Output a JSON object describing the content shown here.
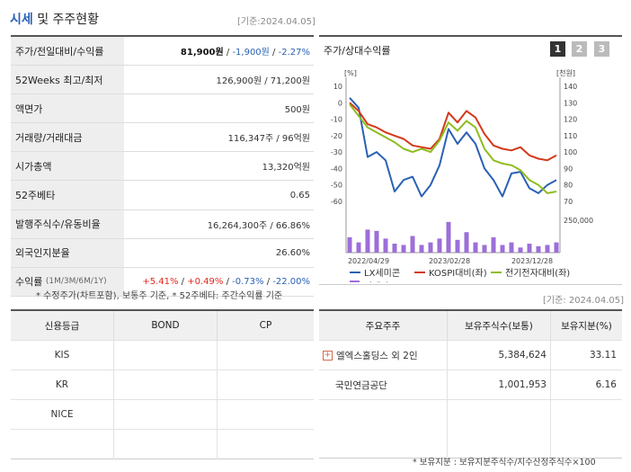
{
  "header": {
    "title_main": "시세",
    "title_sub": " 및 주주현황",
    "date": "[기준:2024.04.05]"
  },
  "info": [
    {
      "label": "주가/전일대비/수익률",
      "v1": "81,900원",
      "sep1": " / ",
      "v2": "-1,900원",
      "sep2": " / ",
      "v3": "-2.27%"
    },
    {
      "label": "52Weeks 최고/최저",
      "value": "126,900원 / 71,200원"
    },
    {
      "label": "액면가",
      "value": "500원"
    },
    {
      "label": "거래량/거래대금",
      "value": "116,347주 / 96억원"
    },
    {
      "label": "시가총액",
      "value": "13,320억원"
    },
    {
      "label": "52주베타",
      "value": "0.65"
    },
    {
      "label": "발행주식수/유동비율",
      "value": "16,264,300주 / 66.86%"
    },
    {
      "label": "외국인지분율",
      "value": "26.60%"
    },
    {
      "label": "수익률",
      "label_small": "(1M/3M/6M/1Y)",
      "r1": "+5.41%",
      "r2": "+0.49%",
      "r3": "-0.73%",
      "r4": "-22.00%",
      "sep": " / "
    }
  ],
  "note": "* 수정주가(차트포함), 보통주 기준, * 52주베타: 주간수익률 기준",
  "chart_panel": {
    "title": "주가/상대수익률",
    "tabs": [
      "1",
      "2",
      "3"
    ],
    "active_tab": "1"
  },
  "chart_data": {
    "type": "line",
    "y_left_unit": "[%]",
    "y_right_unit": "[천원]",
    "y_left_ticks": [
      "10",
      "0",
      "-10",
      "-20",
      "-30",
      "-40",
      "-50",
      "-60"
    ],
    "y_right_ticks": [
      "140",
      "130",
      "120",
      "110",
      "100",
      "90",
      "80",
      "70"
    ],
    "ylim_left": [
      -60,
      10
    ],
    "ylim_right": [
      70,
      140
    ],
    "x_tick_labels": [
      "2022/04/29",
      "2023/02/28",
      "2023/12/28"
    ],
    "volume_tick": "250,000",
    "series": [
      {
        "name": "LX세미콘",
        "color": "#2a61b4",
        "values": [
          3,
          -3,
          -33,
          -30,
          -35,
          -54,
          -47,
          -45,
          -57,
          -50,
          -38,
          -16,
          -25,
          -18,
          -25,
          -40,
          -47,
          -57,
          -43,
          -42,
          -52,
          -55,
          -50,
          -47
        ]
      },
      {
        "name": "KOSPI대비(좌)",
        "color": "#d2391b",
        "values": [
          0,
          -5,
          -13,
          -15,
          -18,
          -20,
          -22,
          -26,
          -27,
          -28,
          -22,
          -6,
          -12,
          -5,
          -9,
          -19,
          -26,
          -28,
          -29,
          -27,
          -32,
          -34,
          -35,
          -32
        ]
      },
      {
        "name": "전기전자대비(좌)",
        "color": "#8fbc1f",
        "values": [
          -1,
          -8,
          -15,
          -18,
          -21,
          -24,
          -28,
          -30,
          -28,
          -30,
          -23,
          -12,
          -17,
          -11,
          -15,
          -28,
          -35,
          -37,
          -38,
          -41,
          -47,
          -50,
          -55,
          -54
        ]
      }
    ],
    "volume_series": {
      "name": "거래량",
      "color": "#9c6fd8",
      "values": [
        60,
        40,
        90,
        85,
        55,
        35,
        30,
        65,
        30,
        40,
        55,
        120,
        50,
        80,
        40,
        30,
        60,
        30,
        40,
        20,
        35,
        25,
        30,
        40
      ]
    },
    "legend": [
      "LX세미콘",
      "KOSPI대비(좌)",
      "전기전자대비(좌)",
      "거래량"
    ]
  },
  "date2": "[기준: 2024.04.05]",
  "credit": {
    "headers": [
      "신용등급",
      "BOND",
      "CP"
    ],
    "rows": [
      [
        "KIS",
        "",
        ""
      ],
      [
        "KR",
        "",
        ""
      ],
      [
        "NICE",
        "",
        ""
      ],
      [
        "",
        "",
        ""
      ]
    ]
  },
  "holders": {
    "headers": [
      "주요주주",
      "보유주식수(보통)",
      "보유지분(%)"
    ],
    "rows": [
      {
        "name": "엘엑스홀딩스 외 2인",
        "expand": "+",
        "shares": "5,384,624",
        "pct": "33.11"
      },
      {
        "name": "국민연금공단",
        "expand": "",
        "shares": "1,001,953",
        "pct": "6.16"
      },
      {
        "name": "",
        "expand": "",
        "shares": "",
        "pct": ""
      }
    ]
  },
  "footnote": "* 보유지분 : 보유지분주식수/지수산정주식수×100"
}
